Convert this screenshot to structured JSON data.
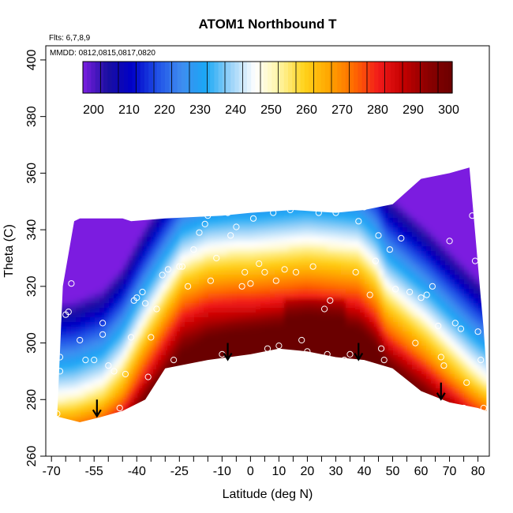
{
  "chart_data": {
    "type": "heatmap",
    "title": "ATOM1 Northbound T",
    "annotations": [
      "Flts: 6,7,8,9",
      "MMDD: 0812,0815,0817,0820"
    ],
    "xlabel": "Latitude (deg N)",
    "ylabel": "Theta (C)",
    "xlim": [
      -72,
      84
    ],
    "ylim": [
      260,
      405
    ],
    "x_tick_labels": [
      "-70",
      "-55",
      "-40",
      "-25",
      "-10",
      "0",
      "10",
      "20",
      "30",
      "40",
      "50",
      "60",
      "70",
      "80"
    ],
    "y_tick_labels": [
      "260",
      "280",
      "300",
      "320",
      "340",
      "360",
      "380",
      "400"
    ],
    "colorbar": {
      "range": [
        197,
        301
      ],
      "tick_labels": [
        "200",
        "210",
        "220",
        "230",
        "240",
        "250",
        "260",
        "270",
        "280",
        "290",
        "300"
      ],
      "colors": [
        "#7b1fe0",
        "#1a0fa0",
        "#0000c8",
        "#1f4fe6",
        "#3f8cf0",
        "#1aa8f5",
        "#9ad2f8",
        "#ffffff",
        "#fff4a0",
        "#ffd21a",
        "#ffa500",
        "#ff6a00",
        "#f21a1a",
        "#c40000",
        "#8b0000",
        "#6b0000"
      ]
    },
    "domain": {
      "top_boundary": [
        [
          -66,
          320
        ],
        [
          -62,
          343
        ],
        [
          -60,
          344
        ],
        [
          -45,
          344
        ],
        [
          -42,
          343
        ],
        [
          -30,
          344
        ],
        [
          -10,
          345
        ],
        [
          0,
          346
        ],
        [
          15,
          347
        ],
        [
          30,
          346
        ],
        [
          40,
          347
        ],
        [
          50,
          349
        ],
        [
          60,
          358
        ],
        [
          70,
          360
        ],
        [
          77,
          362
        ],
        [
          81,
          316
        ],
        [
          82,
          305
        ],
        [
          83,
          290
        ],
        [
          83,
          276
        ]
      ],
      "bottom_boundary": [
        [
          -68,
          274
        ],
        [
          -60,
          272
        ],
        [
          -52,
          274
        ],
        [
          -45,
          276
        ],
        [
          -37,
          280
        ],
        [
          -30,
          291
        ],
        [
          -15,
          294
        ],
        [
          0,
          296
        ],
        [
          10,
          298
        ],
        [
          20,
          297
        ],
        [
          30,
          295
        ],
        [
          40,
          294
        ],
        [
          50,
          291
        ],
        [
          60,
          283
        ],
        [
          70,
          279
        ],
        [
          75,
          278
        ],
        [
          80,
          277
        ],
        [
          83,
          276
        ]
      ]
    },
    "flight_points": [
      [
        -67,
        295
      ],
      [
        -67,
        290
      ],
      [
        -68,
        275
      ],
      [
        -65,
        310
      ],
      [
        -64,
        311
      ],
      [
        -63,
        321
      ],
      [
        -60,
        301
      ],
      [
        -58,
        294
      ],
      [
        -55,
        294
      ],
      [
        -52,
        303
      ],
      [
        -52,
        307
      ],
      [
        -50,
        292
      ],
      [
        -48,
        290
      ],
      [
        -46,
        277
      ],
      [
        -44,
        289
      ],
      [
        -42,
        302
      ],
      [
        -41,
        315
      ],
      [
        -40,
        316
      ],
      [
        -38,
        318
      ],
      [
        -37,
        314
      ],
      [
        -36,
        288
      ],
      [
        -35,
        302
      ],
      [
        -33,
        312
      ],
      [
        -31,
        324
      ],
      [
        -29,
        326
      ],
      [
        -27,
        294
      ],
      [
        -25,
        327
      ],
      [
        -24,
        327
      ],
      [
        -22,
        320
      ],
      [
        -20,
        333
      ],
      [
        -18,
        339
      ],
      [
        -16,
        342
      ],
      [
        -15,
        345
      ],
      [
        -14,
        322
      ],
      [
        -12,
        330
      ],
      [
        -10,
        296
      ],
      [
        -8,
        346
      ],
      [
        -7,
        338
      ],
      [
        -5,
        341
      ],
      [
        -3,
        320
      ],
      [
        -2,
        325
      ],
      [
        0,
        321
      ],
      [
        1,
        344
      ],
      [
        3,
        328
      ],
      [
        5,
        325
      ],
      [
        6,
        298
      ],
      [
        8,
        346
      ],
      [
        9,
        322
      ],
      [
        10,
        299
      ],
      [
        12,
        326
      ],
      [
        14,
        347
      ],
      [
        16,
        325
      ],
      [
        18,
        301
      ],
      [
        20,
        297
      ],
      [
        22,
        327
      ],
      [
        24,
        346
      ],
      [
        26,
        312
      ],
      [
        27,
        296
      ],
      [
        28,
        315
      ],
      [
        30,
        346
      ],
      [
        33,
        294
      ],
      [
        35,
        296
      ],
      [
        37,
        325
      ],
      [
        38,
        343
      ],
      [
        40,
        348
      ],
      [
        42,
        317
      ],
      [
        44,
        329
      ],
      [
        45,
        338
      ],
      [
        46,
        298
      ],
      [
        47,
        294
      ],
      [
        49,
        333
      ],
      [
        51,
        319
      ],
      [
        53,
        337
      ],
      [
        56,
        318
      ],
      [
        58,
        300
      ],
      [
        60,
        316
      ],
      [
        62,
        317
      ],
      [
        64,
        320
      ],
      [
        66,
        306
      ],
      [
        67,
        295
      ],
      [
        68,
        292
      ],
      [
        70,
        336
      ],
      [
        72,
        307
      ],
      [
        74,
        305
      ],
      [
        75,
        277
      ],
      [
        76,
        286
      ],
      [
        78,
        345
      ],
      [
        79,
        329
      ],
      [
        80,
        304
      ],
      [
        81,
        294
      ],
      [
        82,
        277
      ]
    ],
    "arrows": [
      [
        -54,
        280
      ],
      [
        -8,
        300
      ],
      [
        38,
        300
      ],
      [
        67,
        286
      ]
    ],
    "grid": false,
    "legend": "top colorbar"
  }
}
